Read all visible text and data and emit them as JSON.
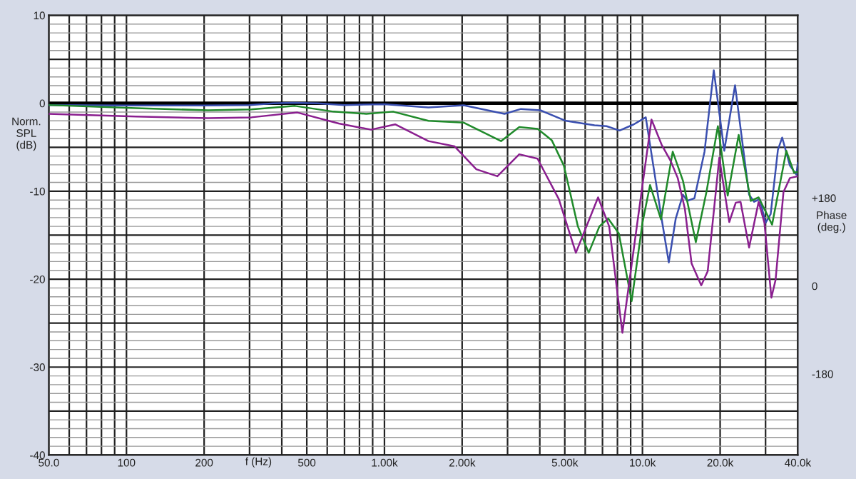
{
  "chart_data": {
    "type": "line",
    "xlabel": "f (Hz)",
    "ylabel": "Norm.\nSPL\n(dB)",
    "y2label": "Phase\n(deg.)",
    "log": "x",
    "grid": true,
    "line_style": "solid",
    "marker": "none",
    "xlim": [
      50,
      40000
    ],
    "ylim": [
      -40,
      10
    ],
    "y2lim": [
      -346,
      554
    ],
    "xticks": [
      {
        "value": 50,
        "label": "50.0"
      },
      {
        "value": 60,
        "label": null
      },
      {
        "value": 70,
        "label": null
      },
      {
        "value": 80,
        "label": null
      },
      {
        "value": 90,
        "label": null
      },
      100,
      200,
      {
        "value": 300,
        "label": null
      },
      {
        "value": 400,
        "label": null
      },
      500,
      {
        "value": 600,
        "label": null
      },
      {
        "value": 700,
        "label": null
      },
      {
        "value": 800,
        "label": null
      },
      {
        "value": 900,
        "label": null
      },
      {
        "value": 1000,
        "label": "1.00k"
      },
      {
        "value": 2000,
        "label": "2.00k"
      },
      {
        "value": 3000,
        "label": null
      },
      {
        "value": 4000,
        "label": null
      },
      {
        "value": 5000,
        "label": "5.00k"
      },
      {
        "value": 6000,
        "label": null
      },
      {
        "value": 7000,
        "label": null
      },
      {
        "value": 8000,
        "label": null
      },
      {
        "value": 9000,
        "label": null
      },
      {
        "value": 10000,
        "label": "10.0k"
      },
      {
        "value": 20000,
        "label": "20.0k"
      },
      {
        "value": 30000,
        "label": null
      },
      {
        "value": 40000,
        "label": "40.0k"
      }
    ],
    "yticks": [
      -40,
      {
        "value": -39,
        "label": null
      },
      {
        "value": -38,
        "label": null
      },
      {
        "value": -37,
        "label": null
      },
      {
        "value": -36,
        "label": null
      },
      {
        "value": -35,
        "label": null
      },
      {
        "value": -34,
        "label": null
      },
      {
        "value": -33,
        "label": null
      },
      {
        "value": -32,
        "label": null
      },
      {
        "value": -31,
        "label": null
      },
      -30,
      {
        "value": -29,
        "label": null
      },
      {
        "value": -28,
        "label": null
      },
      {
        "value": -27,
        "label": null
      },
      {
        "value": -26,
        "label": null
      },
      {
        "value": -25,
        "label": null
      },
      {
        "value": -24,
        "label": null
      },
      {
        "value": -23,
        "label": null
      },
      {
        "value": -22,
        "label": null
      },
      {
        "value": -21,
        "label": null
      },
      -20,
      {
        "value": -19,
        "label": null
      },
      {
        "value": -18,
        "label": null
      },
      {
        "value": -17,
        "label": null
      },
      {
        "value": -16,
        "label": null
      },
      {
        "value": -15,
        "label": null
      },
      {
        "value": -14,
        "label": null
      },
      {
        "value": -13,
        "label": null
      },
      {
        "value": -12,
        "label": null
      },
      {
        "value": -11,
        "label": null
      },
      -10,
      {
        "value": -9,
        "label": null
      },
      {
        "value": -8,
        "label": null
      },
      {
        "value": -7,
        "label": null
      },
      {
        "value": -6,
        "label": null
      },
      {
        "value": -5,
        "label": null
      },
      {
        "value": -4,
        "label": null
      },
      {
        "value": -3,
        "label": null
      },
      {
        "value": -2,
        "label": null
      },
      {
        "value": -1,
        "label": null
      },
      0,
      {
        "value": 1,
        "label": null
      },
      {
        "value": 2,
        "label": null
      },
      {
        "value": 3,
        "label": null
      },
      {
        "value": 4,
        "label": null
      },
      {
        "value": 5,
        "label": null
      },
      {
        "value": 6,
        "label": null
      },
      {
        "value": 7,
        "label": null
      },
      {
        "value": 8,
        "label": null
      },
      {
        "value": 9,
        "label": null
      },
      10
    ],
    "y2ticks": [
      {
        "value": 180,
        "label": "+180"
      },
      0,
      -180
    ],
    "ref_lines": [
      {
        "axis": "y",
        "value": 0,
        "color": "#000000"
      }
    ],
    "series": [
      {
        "color": "#3a4fb0",
        "x": [
          50,
          100,
          200,
          300,
          371,
          441,
          550,
          700,
          1000,
          1480,
          2030,
          2920,
          3380,
          4020,
          5050,
          6520,
          7260,
          8150,
          9250,
          10300,
          11860,
          12650,
          13460,
          14350,
          14900,
          15900,
          17400,
          18900,
          20750,
          22850,
          25900,
          27100,
          28500,
          30000,
          31400,
          33500,
          34800,
          37300,
          39500,
          40000
        ],
        "values": [
          -0.2,
          -0.25,
          -0.25,
          -0.2,
          0,
          0.05,
          0,
          -0.2,
          -0.1,
          -0.47,
          -0.23,
          -1.2,
          -0.65,
          -0.8,
          -2.0,
          -2.5,
          -2.6,
          -3.1,
          -2.4,
          -1.6,
          -13.1,
          -18.1,
          -13.1,
          -10.4,
          -11.1,
          -10.8,
          -5.5,
          3.75,
          -5.4,
          2.05,
          -10.4,
          -11.2,
          -10.9,
          -13.6,
          -12.6,
          -5.3,
          -3.9,
          -7.1,
          -8.1,
          -6.8
        ]
      },
      {
        "color": "#1f8a2a",
        "x": [
          50,
          109,
          207,
          305,
          450,
          634,
          850,
          1080,
          1480,
          2030,
          2830,
          3330,
          3920,
          4450,
          4960,
          5620,
          6190,
          6810,
          7360,
          8100,
          9080,
          10000,
          10700,
          11800,
          13100,
          14350,
          16100,
          17700,
          19600,
          21400,
          23600,
          26300,
          28200,
          31800,
          36100,
          38700,
          40000
        ],
        "values": [
          -0.2,
          -0.55,
          -0.8,
          -0.7,
          -0.3,
          -0.95,
          -1.2,
          -0.95,
          -2.0,
          -2.2,
          -4.3,
          -2.7,
          -2.9,
          -4.2,
          -7.1,
          -14.0,
          -17.0,
          -14.0,
          -13.1,
          -14.8,
          -22.5,
          -13.6,
          -9.3,
          -13.2,
          -5.5,
          -8.8,
          -15.8,
          -10.1,
          -2.6,
          -10.5,
          -3.6,
          -11.1,
          -10.7,
          -13.8,
          -5.4,
          -7.9,
          -7.8
        ]
      },
      {
        "color": "#8a1f8f",
        "x": [
          50,
          109,
          207,
          305,
          460,
          665,
          887,
          1100,
          1480,
          1870,
          2270,
          2740,
          3330,
          3920,
          4740,
          5520,
          6730,
          7430,
          8360,
          9550,
          10840,
          11860,
          12880,
          13700,
          14600,
          15500,
          16900,
          17900,
          19850,
          21700,
          23000,
          24000,
          25900,
          28200,
          29700,
          31600,
          32800,
          35200,
          37300,
          40000
        ],
        "values": [
          -1.2,
          -1.5,
          -1.7,
          -1.6,
          -1.05,
          -2.3,
          -3.0,
          -2.4,
          -4.3,
          -4.9,
          -7.5,
          -8.3,
          -5.8,
          -6.3,
          -10.9,
          -17.0,
          -10.7,
          -14.0,
          -26.1,
          -13.6,
          -1.85,
          -4.7,
          -6.6,
          -8.5,
          -12.0,
          -18.2,
          -20.7,
          -19.1,
          -6.2,
          -13.5,
          -11.3,
          -11.2,
          -16.4,
          -11.2,
          -13.6,
          -22.1,
          -20.1,
          -10.1,
          -8.5,
          -8.3
        ]
      }
    ]
  }
}
